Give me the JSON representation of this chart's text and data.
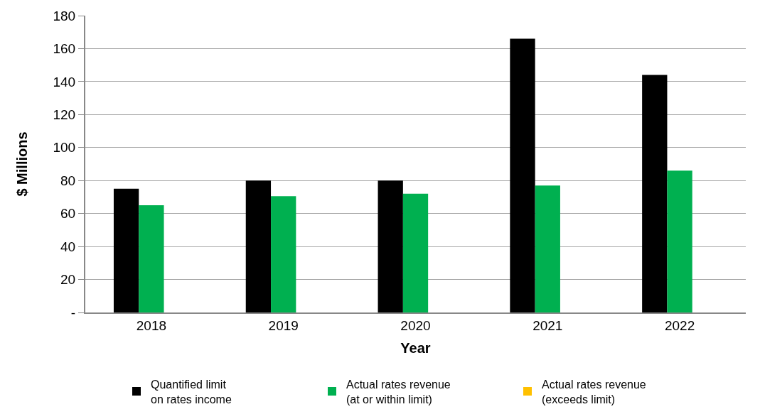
{
  "chart_data": {
    "type": "bar",
    "xlabel": "Year",
    "ylabel": "$ Millions",
    "categories": [
      "2018",
      "2019",
      "2020",
      "2021",
      "2022"
    ],
    "series": [
      {
        "name": "Quantified limit on rates income",
        "color": "#000000",
        "values": [
          75,
          80,
          80,
          166,
          144
        ]
      },
      {
        "name": "Actual rates revenue (at or within limit)",
        "color": "#00b050",
        "values": [
          65,
          70.5,
          72,
          77,
          86
        ]
      },
      {
        "name": "Actual rates revenue (exceeds limit)",
        "color": "#ffc000",
        "values": [
          null,
          null,
          null,
          null,
          null
        ]
      }
    ],
    "ylim": [
      0,
      180
    ],
    "yticks": [
      {
        "value": 0,
        "label": "-"
      },
      20,
      40,
      60,
      80,
      100,
      120,
      140,
      160,
      180
    ],
    "grid": "y",
    "legend": "bottom"
  }
}
